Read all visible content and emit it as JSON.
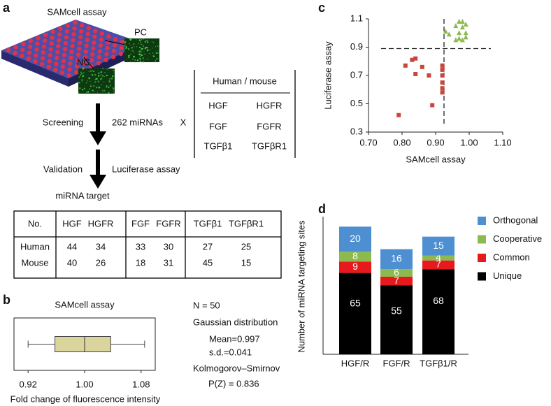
{
  "panel_labels": [
    "a",
    "b",
    "c",
    "d"
  ],
  "diagram": {
    "title": "SAMcell assay",
    "pc": "PC",
    "nc": "NC",
    "steps": [
      {
        "label": "Screening",
        "detail": "262 miRNAs"
      },
      {
        "label": "Validation",
        "detail": "Luciferase assay"
      }
    ],
    "operator": "X",
    "result": "miRNA target",
    "targets": {
      "header": "Human / mouse",
      "pairs": [
        [
          "HGF",
          "HGFR"
        ],
        [
          "FGF",
          "FGFR"
        ],
        [
          "TGFβ1",
          "TGFβR1"
        ]
      ]
    }
  },
  "table": {
    "header": [
      "No.",
      "HGF",
      "HGFR",
      "FGF",
      "FGFR",
      "TGFβ1",
      "TGFβR1"
    ],
    "rows": [
      [
        "Human",
        44,
        34,
        33,
        30,
        27,
        25
      ],
      [
        "Mouse",
        40,
        26,
        18,
        31,
        45,
        15
      ]
    ]
  },
  "chart_data": [
    {
      "type": "box",
      "title": "SAMcell assay",
      "xlabel": "Fold change of fluorescence intensity",
      "xlim": [
        0.9,
        1.1
      ],
      "xticks": [
        0.92,
        {
          "value": 1,
          "label": "1.00"
        },
        1.08
      ],
      "box": {
        "min": 0.92,
        "q1": 0.958,
        "median": 1.0,
        "q3": 1.037,
        "max": 1.085
      },
      "color": "#d9d59c",
      "annotations": [
        "N = 50",
        "Gaussian distribution",
        "Mean=0.997",
        "s.d.=0.041",
        "Kolmogorov–Smirnov",
        "P(Z) = 0.836"
      ]
    },
    {
      "type": "scatter",
      "xlabel": "SAMcell assay",
      "ylabel": "Luciferase assay",
      "xlim": [
        0.7,
        1.1
      ],
      "ylim": [
        0.3,
        1.1
      ],
      "xticks": [
        {
          "value": 0.7,
          "label": "0.70"
        },
        {
          "value": 0.8,
          "label": "0.80"
        },
        {
          "value": 0.9,
          "label": "0.90"
        },
        {
          "value": 1,
          "label": "1.00"
        },
        {
          "value": 1.1,
          "label": "1.10"
        }
      ],
      "yticks": [
        0.3,
        0.5,
        0.7,
        0.9,
        1.1
      ],
      "vline": 0.925,
      "hline": 0.89,
      "series": [
        {
          "color": "#c9463d",
          "marker": "square",
          "x": [
            0.79,
            0.81,
            0.83,
            0.84,
            0.84,
            0.86,
            0.88,
            0.89,
            0.92,
            0.92,
            0.92,
            0.92,
            0.92,
            0.92
          ],
          "values": [
            0.42,
            0.77,
            0.81,
            0.82,
            0.71,
            0.76,
            0.7,
            0.49,
            0.77,
            0.74,
            0.7,
            0.65,
            0.61,
            0.58
          ]
        },
        {
          "color": "#8cba4f",
          "marker": "triangle",
          "x": [
            0.93,
            0.94,
            0.96,
            0.97,
            0.98,
            0.98,
            0.99,
            0.97,
            0.99,
            0.96,
            0.98,
            0.99,
            0.97
          ],
          "values": [
            1.01,
            0.99,
            1.05,
            1.08,
            1.08,
            1.04,
            1.06,
            1.0,
            1.0,
            0.95,
            0.95,
            0.97,
            0.96
          ]
        }
      ]
    },
    {
      "type": "stacked_bar",
      "ylabel": "Number of miRNA targeting sites",
      "ylim": [
        0,
        110
      ],
      "categories": [
        "HGF/R",
        "FGF/R",
        "TGFβ1/R"
      ],
      "series": [
        {
          "name": "Unique",
          "color": "#000000",
          "values": [
            65,
            55,
            68
          ]
        },
        {
          "name": "Common",
          "color": "#e8191c",
          "values": [
            9,
            7,
            7
          ]
        },
        {
          "name": "Cooperative",
          "color": "#8cba4f",
          "values": [
            8,
            6,
            4
          ]
        },
        {
          "name": "Orthogonal",
          "color": "#4d8fd1",
          "values": [
            20,
            16,
            15
          ]
        }
      ]
    }
  ]
}
